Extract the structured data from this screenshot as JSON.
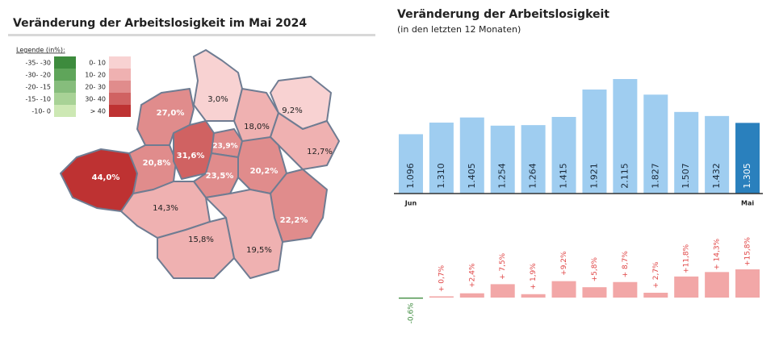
{
  "map": {
    "title": "Veränderung der Arbeitslosigkeit im Mai 2024",
    "legend_title": "Legende (in%):",
    "legend": [
      {
        "label": "-35- -30",
        "color": "#3d8b3d"
      },
      {
        "label": "-30- -20",
        "color": "#5fa55a"
      },
      {
        "label": "-20- -15",
        "color": "#86bd7c"
      },
      {
        "label": "-15- -10",
        "color": "#a8d296"
      },
      {
        "label": "-10- 0",
        "color": "#cde8b4"
      },
      {
        "label": "0- 10",
        "color": "#f8d2d2"
      },
      {
        "label": "10- 20",
        "color": "#efb1b1"
      },
      {
        "label": "20- 30",
        "color": "#e08c8c"
      },
      {
        "label": "30- 40",
        "color": "#d06262"
      },
      {
        "label": "> 40",
        "color": "#be3232"
      }
    ],
    "regions": [
      {
        "value": 44.0,
        "value_label": "44,0%",
        "color": "#be3232"
      },
      {
        "value": 20.8,
        "value_label": "20,8%",
        "color": "#e08c8c"
      },
      {
        "value": 27.0,
        "value_label": "27,0%",
        "color": "#e08c8c"
      },
      {
        "value": 31.6,
        "value_label": "31,6%",
        "color": "#d06262"
      },
      {
        "value": 23.9,
        "value_label": "23,9%",
        "color": "#e08c8c"
      },
      {
        "value": 3.0,
        "value_label": "3,0%",
        "color": "#f8d2d2"
      },
      {
        "value": 18.0,
        "value_label": "18,0%",
        "color": "#efb1b1"
      },
      {
        "value": 9.2,
        "value_label": "9,2%",
        "color": "#f8d2d2"
      },
      {
        "value": 12.7,
        "value_label": "12,7%",
        "color": "#efb1b1"
      },
      {
        "value": 20.2,
        "value_label": "20,2%",
        "color": "#e08c8c"
      },
      {
        "value": 23.5,
        "value_label": "23,5%",
        "color": "#e08c8c"
      },
      {
        "value": 22.2,
        "value_label": "22,2%",
        "color": "#e08c8c"
      },
      {
        "value": 14.3,
        "value_label": "14,3%",
        "color": "#efb1b1"
      },
      {
        "value": 15.8,
        "value_label": "15,8%",
        "color": "#efb1b1"
      },
      {
        "value": 19.5,
        "value_label": "19,5%",
        "color": "#efb1b1"
      }
    ]
  },
  "chart_data": [
    {
      "type": "bar",
      "title": "Veränderung der Arbeitslosigkeit",
      "subtitle": "(in den letzten 12 Monaten)",
      "categories": [
        "Jun",
        null,
        null,
        null,
        null,
        null,
        null,
        null,
        null,
        null,
        null,
        "Mai"
      ],
      "values": [
        1096,
        1310,
        1405,
        1254,
        1264,
        1415,
        1921,
        2115,
        1827,
        1507,
        1432,
        1305
      ],
      "value_labels": [
        "1.096",
        "1.310",
        "1.405",
        "1.254",
        "1.264",
        "1.415",
        "1.921",
        "2.115",
        "1.827",
        "1.507",
        "1.432",
        "1.305"
      ],
      "colors": [
        "#9fcdf0",
        "#9fcdf0",
        "#9fcdf0",
        "#9fcdf0",
        "#9fcdf0",
        "#9fcdf0",
        "#9fcdf0",
        "#9fcdf0",
        "#9fcdf0",
        "#9fcdf0",
        "#9fcdf0",
        "#2a80bd"
      ]
    },
    {
      "type": "bar",
      "values": [
        -0.6,
        0.7,
        2.4,
        7.5,
        1.9,
        9.2,
        5.8,
        8.7,
        2.7,
        11.8,
        14.3,
        15.8
      ],
      "value_labels": [
        "-0,6%",
        "+ 0,7%",
        "+2,4%",
        "+ 7,5%",
        "+ 1,9%",
        "+9,2%",
        "+5,8%",
        "+ 8,7%",
        "+ 2,7%",
        "+11,8%",
        "+ 14,3%",
        "+15,8%"
      ],
      "positive_color": "#f2a7a7",
      "negative_color": "#3d8b3d",
      "positive_label_color": "#e04545",
      "negative_label_color": "#3d8b3d"
    }
  ]
}
